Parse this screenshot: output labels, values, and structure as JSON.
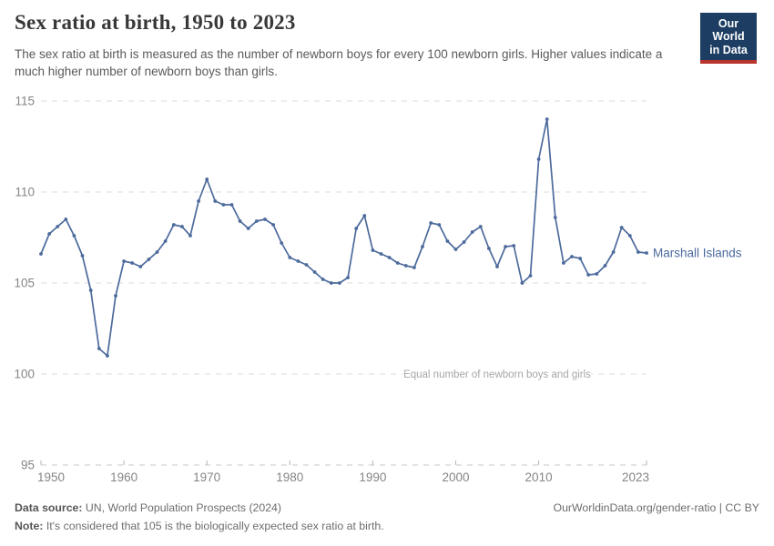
{
  "header": {
    "title": "Sex ratio at birth, 1950 to 2023",
    "subtitle": "The sex ratio at birth is measured as the number of newborn boys for every 100 newborn girls. Higher values indicate a much higher number of newborn boys than girls.",
    "logo_line1": "Our World",
    "logo_line2": "in Data"
  },
  "chart_data": {
    "type": "line",
    "title": "Sex ratio at birth, 1950 to 2023",
    "xlabel": "",
    "ylabel": "",
    "ylim": [
      95,
      115
    ],
    "xlim": [
      1950,
      2023
    ],
    "y_ticks": [
      95,
      100,
      105,
      110,
      115
    ],
    "x_ticks": [
      1950,
      1960,
      1970,
      1980,
      1990,
      2000,
      2010,
      2023
    ],
    "grid": "horizontal-dashed",
    "legend_position": "end-of-line-label",
    "annotation": {
      "text": "Equal number of newborn boys and girls",
      "y": 100
    },
    "series": [
      {
        "name": "Marshall Islands",
        "color": "#4c6a9c",
        "x": [
          1950,
          1951,
          1952,
          1953,
          1954,
          1955,
          1956,
          1957,
          1958,
          1959,
          1960,
          1961,
          1962,
          1963,
          1964,
          1965,
          1966,
          1967,
          1968,
          1969,
          1970,
          1971,
          1972,
          1973,
          1974,
          1975,
          1976,
          1977,
          1978,
          1979,
          1980,
          1981,
          1982,
          1983,
          1984,
          1985,
          1986,
          1987,
          1988,
          1989,
          1990,
          1991,
          1992,
          1993,
          1994,
          1995,
          1996,
          1997,
          1998,
          1999,
          2000,
          2001,
          2002,
          2003,
          2004,
          2005,
          2006,
          2007,
          2008,
          2009,
          2010,
          2011,
          2012,
          2013,
          2014,
          2015,
          2016,
          2017,
          2018,
          2019,
          2020,
          2021,
          2022,
          2023
        ],
        "values": [
          106.6,
          107.7,
          108.1,
          108.5,
          107.6,
          106.5,
          104.6,
          101.4,
          101.0,
          104.3,
          106.2,
          106.1,
          105.9,
          106.3,
          106.7,
          107.3,
          108.2,
          108.1,
          107.6,
          109.5,
          110.7,
          109.5,
          109.3,
          109.3,
          108.4,
          108.0,
          108.4,
          108.5,
          108.2,
          107.2,
          106.4,
          106.2,
          106.0,
          105.6,
          105.2,
          105.0,
          105.0,
          105.3,
          108.0,
          108.7,
          106.8,
          106.6,
          106.4,
          106.1,
          105.95,
          105.85,
          107.0,
          108.3,
          108.2,
          107.3,
          106.85,
          107.25,
          107.8,
          108.1,
          106.9,
          105.9,
          107.0,
          107.05,
          105.0,
          105.4,
          111.8,
          114.0,
          108.6,
          106.1,
          106.45,
          106.35,
          105.45,
          105.5,
          105.95,
          106.7,
          108.05,
          107.6,
          106.7,
          106.65
        ]
      }
    ]
  },
  "colors": {
    "series_blue": "#4c6a9c",
    "gridline": "#dbdbdb",
    "baseline": "#c9c9c9",
    "tick": "#b5b5b5",
    "axis_label": "#858585",
    "annotation": "#a6a6a6",
    "logo_bg": "#1d3d63",
    "logo_stripe": "#bb342d"
  },
  "footer": {
    "data_source_label": "Data source:",
    "data_source": " UN, World Population Prospects (2024)",
    "note_label": "Note:",
    "note": " It's considered that 105 is the biologically expected sex ratio at birth.",
    "credit": "OurWorldinData.org/gender-ratio | CC BY"
  }
}
